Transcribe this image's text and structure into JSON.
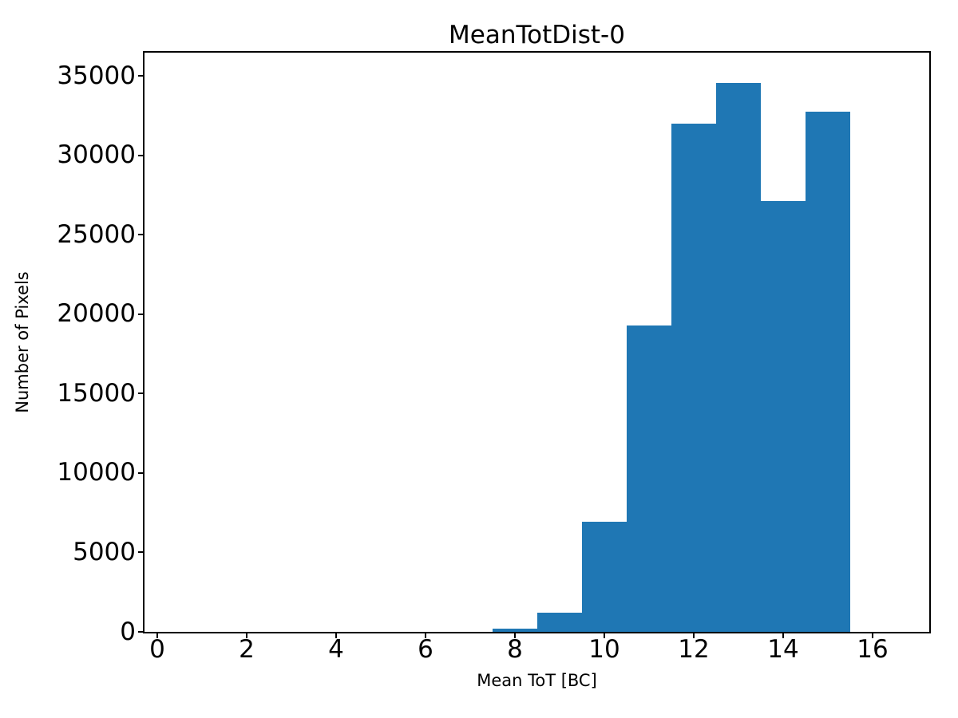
{
  "figure": {
    "background": "#ffffff",
    "text_color": "#000000"
  },
  "chart_data": {
    "type": "histogram",
    "title": "MeanTotDist-0",
    "xlabel": "Mean ToT [BC]",
    "ylabel": "Number of Pixels",
    "bar_color": "#1f77b4",
    "bin_edges": [
      7.5,
      8.5,
      9.5,
      10.5,
      11.5,
      12.5,
      13.5,
      14.5,
      15.5
    ],
    "counts": [
      200,
      1200,
      6950,
      19300,
      32000,
      34550,
      27100,
      32750
    ],
    "xticks": [
      0,
      2,
      4,
      6,
      8,
      10,
      12,
      14,
      16
    ],
    "xtick_labels": [
      "0",
      "2",
      "4",
      "6",
      "8",
      "10",
      "12",
      "14",
      "16"
    ],
    "yticks": [
      0,
      5000,
      10000,
      15000,
      20000,
      25000,
      30000,
      35000
    ],
    "ytick_labels": [
      "0",
      "5000",
      "10000",
      "15000",
      "20000",
      "25000",
      "30000",
      "35000"
    ],
    "xlim": [
      -0.286,
      17.268
    ],
    "ylim": [
      0,
      36460
    ],
    "grid": false,
    "legend_position": "none"
  }
}
